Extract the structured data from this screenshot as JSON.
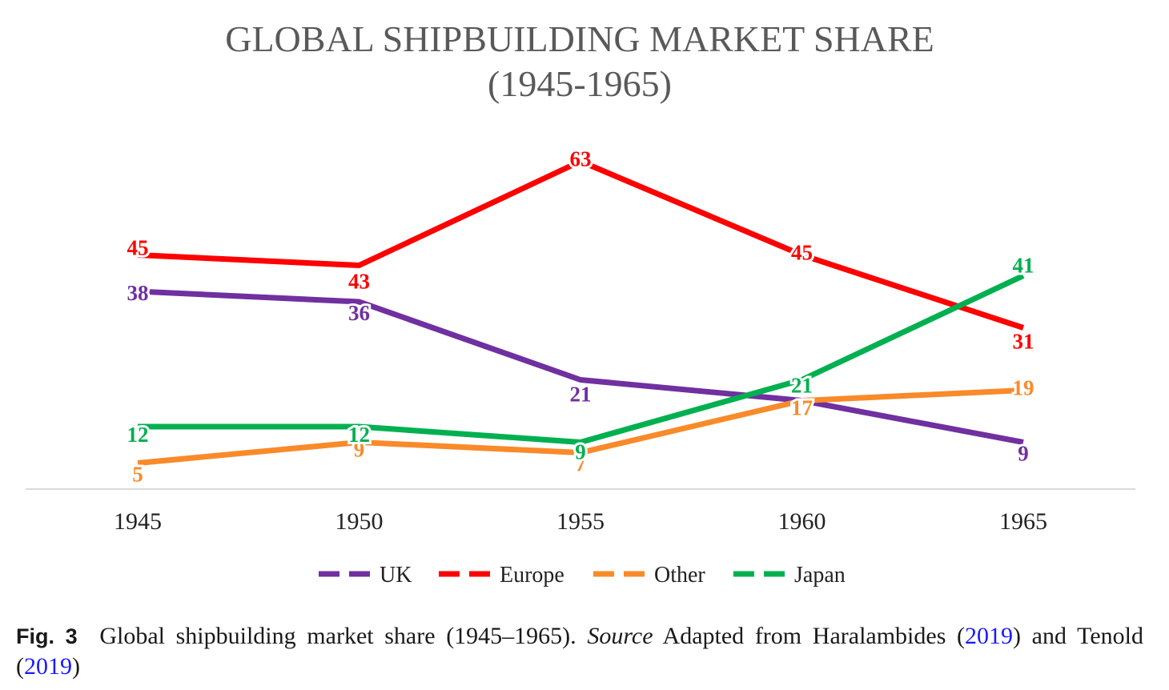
{
  "chart_data": {
    "type": "line",
    "title": "GLOBAL SHIPBUILDING MARKET SHARE",
    "subtitle": "(1945-1965)",
    "x": [
      "1945",
      "1950",
      "1955",
      "1960",
      "1965"
    ],
    "ylim": [
      0,
      70
    ],
    "grid": false,
    "legend_position": "bottom",
    "series": [
      {
        "name": "UK",
        "color": "#7030a0",
        "values": [
          38,
          36,
          21,
          17,
          9
        ],
        "labels": [
          "38",
          "36",
          "21",
          "",
          "9"
        ]
      },
      {
        "name": "Europe",
        "color": "#ff0000",
        "values": [
          45,
          43,
          63,
          45,
          31
        ],
        "labels": [
          "45",
          "43",
          "63",
          "45",
          "31"
        ]
      },
      {
        "name": "Other",
        "color": "#f98a2a",
        "values": [
          5,
          9,
          7,
          17,
          19
        ],
        "labels": [
          "5",
          "9",
          "7",
          "17",
          "19"
        ]
      },
      {
        "name": "Japan",
        "color": "#00b050",
        "values": [
          12,
          12,
          9,
          21,
          41
        ],
        "labels": [
          "12",
          "12",
          "9",
          "21",
          "41"
        ]
      }
    ]
  },
  "caption": {
    "fig_label": "Fig. 3",
    "text_1": "Global shipbuilding market share (1945–1965).",
    "source_label": "Source",
    "text_2": "Adapted from Haralambides (",
    "ref_1": "2019",
    "text_3": ") and Tenold (",
    "ref_2": "2019",
    "text_4": ")"
  }
}
